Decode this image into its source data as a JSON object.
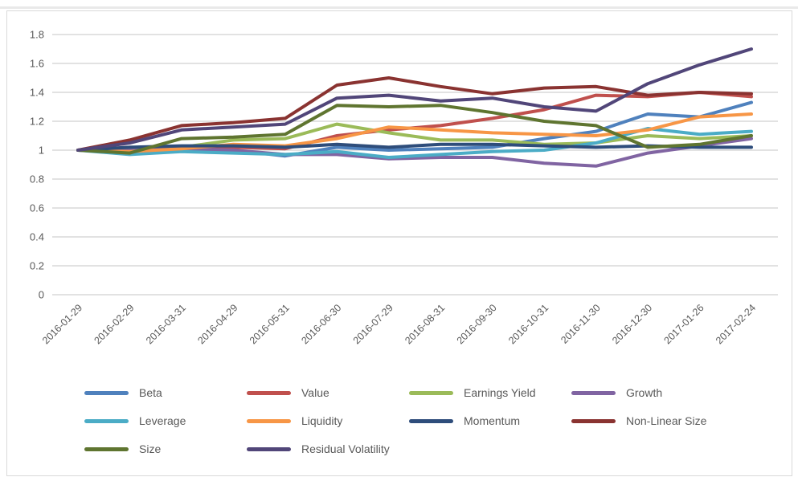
{
  "app": {
    "background_color": "#ffffff",
    "frame_border_color": "#d9d9d9",
    "top_rule_color": "#e9e9e9"
  },
  "chart_data": {
    "type": "line",
    "title": "",
    "xlabel": "",
    "ylabel": "",
    "grid": "horizontal",
    "gridline_color": "#d9d9d9",
    "axis_text_color": "#595959",
    "ylim": [
      0,
      1.8
    ],
    "ytick_step": 0.2,
    "yticks": [
      "0",
      "0.2",
      "0.4",
      "0.6",
      "0.8",
      "1",
      "1.2",
      "1.4",
      "1.6",
      "1.8"
    ],
    "legend_position": "bottom",
    "x": [
      "2016-01-29",
      "2016-02-29",
      "2016-03-31",
      "2016-04-29",
      "2016-05-31",
      "2016-06-30",
      "2016-07-29",
      "2016-08-31",
      "2016-09-30",
      "2016-10-31",
      "2016-11-30",
      "2016-12-30",
      "2017-01-26",
      "2017-02-24"
    ],
    "series": [
      {
        "name": "Beta",
        "color": "#4f81bd",
        "values": [
          1.0,
          0.99,
          1.0,
          1.0,
          0.96,
          1.02,
          1.0,
          1.01,
          1.02,
          1.08,
          1.13,
          1.25,
          1.23,
          1.33
        ]
      },
      {
        "name": "Value",
        "color": "#c0504d",
        "values": [
          1.0,
          1.02,
          1.01,
          1.02,
          1.01,
          1.1,
          1.14,
          1.17,
          1.22,
          1.28,
          1.38,
          1.37,
          1.4,
          1.37
        ]
      },
      {
        "name": "Earnings Yield",
        "color": "#9bbb59",
        "values": [
          1.0,
          0.99,
          1.02,
          1.07,
          1.08,
          1.18,
          1.12,
          1.07,
          1.07,
          1.04,
          1.05,
          1.1,
          1.08,
          1.1
        ]
      },
      {
        "name": "Growth",
        "color": "#8064a2",
        "values": [
          1.0,
          1.0,
          1.01,
          1.0,
          0.97,
          0.97,
          0.94,
          0.95,
          0.95,
          0.91,
          0.89,
          0.98,
          1.03,
          1.08
        ]
      },
      {
        "name": "Leverage",
        "color": "#4bacc6",
        "values": [
          1.0,
          0.97,
          0.99,
          0.98,
          0.97,
          0.99,
          0.95,
          0.97,
          0.99,
          1.0,
          1.05,
          1.15,
          1.11,
          1.13
        ]
      },
      {
        "name": "Liquidity",
        "color": "#f79646",
        "values": [
          1.0,
          0.99,
          1.01,
          1.04,
          1.03,
          1.08,
          1.16,
          1.14,
          1.12,
          1.11,
          1.1,
          1.14,
          1.23,
          1.25
        ]
      },
      {
        "name": "Momentum",
        "color": "#2e4d7b",
        "values": [
          1.0,
          1.02,
          1.03,
          1.03,
          1.02,
          1.04,
          1.02,
          1.04,
          1.04,
          1.03,
          1.02,
          1.03,
          1.02,
          1.02
        ]
      },
      {
        "name": "Non-Linear Size",
        "color": "#8a3331",
        "values": [
          1.0,
          1.07,
          1.17,
          1.19,
          1.22,
          1.45,
          1.5,
          1.44,
          1.39,
          1.43,
          1.44,
          1.38,
          1.4,
          1.39
        ]
      },
      {
        "name": "Size",
        "color": "#5f7530",
        "values": [
          1.0,
          0.98,
          1.08,
          1.09,
          1.11,
          1.31,
          1.3,
          1.31,
          1.26,
          1.2,
          1.17,
          1.02,
          1.04,
          1.1
        ]
      },
      {
        "name": "Residual Volatility",
        "color": "#514679",
        "values": [
          1.0,
          1.05,
          1.14,
          1.16,
          1.18,
          1.36,
          1.38,
          1.34,
          1.36,
          1.3,
          1.27,
          1.46,
          1.59,
          1.7
        ]
      }
    ]
  }
}
